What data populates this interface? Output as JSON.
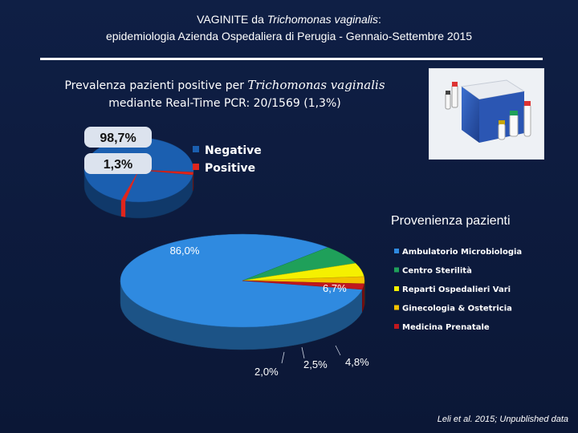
{
  "title": {
    "line1_prefix": "VAGINITE da ",
    "line1_italic": "Trichomonas vaginalis",
    "line1_suffix": ":",
    "line2": "epidemiologia Azienda Ospedaliera di Perugia - Gennaio-Settembre 2015"
  },
  "prevalence": {
    "prefix": "Prevalenza pazienti positive per ",
    "italic": "Trichomonas vaginalis",
    "line2": "mediante Real-Time PCR: 20/1569 (1,3%)"
  },
  "footer": "Leli et al. 2015; Unpublished data",
  "chart_data": [
    {
      "type": "pie",
      "title": "",
      "categories": [
        "Negative",
        "Positive"
      ],
      "values": [
        98.7,
        1.3
      ],
      "labels": [
        "98,7%",
        "1,3%"
      ],
      "colors": [
        "#1b5fb0",
        "#e0251c"
      ],
      "legend": "right"
    },
    {
      "type": "pie",
      "title": "Provenienza pazienti",
      "categories": [
        "Ambulatorio Microbiologia",
        "Centro Sterilità",
        "Reparti Ospedalieri Vari",
        "Ginecologia & Ostetricia",
        "Medicina Prenatale"
      ],
      "values": [
        86.0,
        6.7,
        4.8,
        2.5,
        2.0
      ],
      "labels": [
        "86,0%",
        "6,7%",
        "4,8%",
        "2,5%",
        "2,0%"
      ],
      "colors": [
        "#2f8ae0",
        "#1fa05a",
        "#f5f000",
        "#f2c200",
        "#c0171e"
      ],
      "legend": "right"
    }
  ]
}
